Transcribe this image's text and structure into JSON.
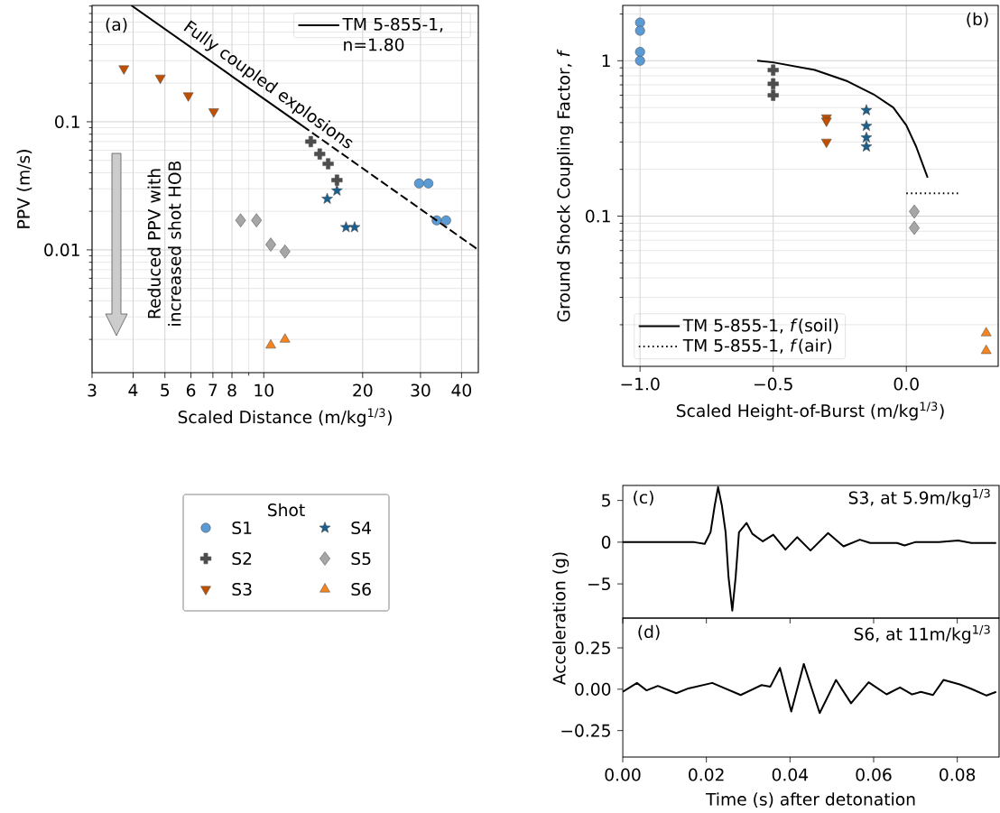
{
  "chart_data": [
    {
      "type": "scatter",
      "xlabel": "Scaled Distance (m/kg$^{1/3}$)",
      "ylabel": "PPV (m/s)",
      "legend_title": "Shot",
      "log": "xy",
      "grid": true,
      "legend": "bottom",
      "xlim": [
        3,
        45
      ],
      "ylim": [
        0.0011,
        0.81
      ],
      "xticks": [
        3,
        4,
        5,
        6,
        7,
        8,
        10,
        20,
        30,
        40
      ],
      "yticks": [
        0.01,
        0.1
      ],
      "annotations": [
        "(a)",
        "Fully coupled explosions",
        "Reduced PPV with increased shot HOB"
      ],
      "series": [
        {
          "name": "S1",
          "color": "#5b9bd5",
          "marker": "circle",
          "x": [
            29.7,
            31.7,
            33.6,
            35.9
          ],
          "values": [
            0.033,
            0.033,
            0.017,
            0.017
          ]
        },
        {
          "name": "S2",
          "color": "#4d4d4d",
          "marker": "cross",
          "x": [
            13.9,
            14.8,
            15.7,
            16.7
          ],
          "values": [
            0.07,
            0.056,
            0.047,
            0.035
          ]
        },
        {
          "name": "S3",
          "color": "#c04f00",
          "marker": "triangle_down",
          "x": [
            3.75,
            4.84,
            5.89,
            7.04
          ],
          "values": [
            0.26,
            0.22,
            0.16,
            0.12
          ]
        },
        {
          "name": "S4",
          "color": "#1a5f8e",
          "marker": "star",
          "x": [
            15.6,
            16.7,
            17.8,
            18.9
          ],
          "values": [
            0.025,
            0.029,
            0.015,
            0.015
          ]
        },
        {
          "name": "S5",
          "color": "#a6a6a6",
          "marker": "diamond",
          "x": [
            8.5,
            9.5,
            10.5,
            11.6
          ],
          "values": [
            0.017,
            0.017,
            0.011,
            0.0097
          ]
        },
        {
          "name": "S6",
          "color": "#f5841f",
          "marker": "triangle",
          "x": [
            10.5,
            11.6
          ],
          "values": [
            0.0018,
            0.002
          ]
        },
        {
          "type": "line",
          "name": "TM 5-855-1, n=1.80",
          "color": "#000000",
          "line_style": "solid",
          "marker": "none",
          "x": [
            3.95,
            13.1
          ],
          "values": [
            0.81,
            0.093
          ]
        },
        {
          "type": "line",
          "color": "#000000",
          "line_style": "dashed",
          "marker": "none",
          "x": [
            13.1,
            45
          ],
          "values": [
            0.093,
            0.01
          ]
        }
      ]
    },
    {
      "type": "scatter",
      "xlabel": "Scaled Height-of-Burst (m/kg$^{1/3}$)",
      "ylabel": "Ground Shock Coupling Factor, *f*",
      "log": "y",
      "grid": true,
      "legend": "bottom left",
      "xlim": [
        -1.065,
        0.345
      ],
      "ylim": [
        0.0108,
        2.27
      ],
      "xticks": [
        {
          "value": -1.0,
          "label": "−1.0"
        },
        {
          "value": -0.5,
          "label": "−0.5"
        },
        {
          "value": 0.0,
          "label": "0.0"
        }
      ],
      "yticks": [
        0.1,
        1
      ],
      "annotations": [
        "(b)"
      ],
      "series": [
        {
          "color": "#5b9bd5",
          "marker": "circle",
          "x": [
            -1.0,
            -1.0,
            -1.0,
            -1.0
          ],
          "values": [
            1.76,
            1.56,
            1.14,
            1.0
          ]
        },
        {
          "color": "#4d4d4d",
          "marker": "cross",
          "x": [
            -0.5,
            -0.5,
            -0.5
          ],
          "values": [
            0.87,
            0.71,
            0.6
          ]
        },
        {
          "color": "#c04f00",
          "marker": "triangle_down",
          "x": [
            -0.3,
            -0.3,
            -0.3
          ],
          "values": [
            0.43,
            0.41,
            0.3
          ]
        },
        {
          "color": "#1a5f8e",
          "marker": "star",
          "x": [
            -0.15,
            -0.15,
            -0.15,
            -0.15
          ],
          "values": [
            0.48,
            0.38,
            0.32,
            0.28
          ]
        },
        {
          "color": "#a6a6a6",
          "marker": "diamond",
          "x": [
            0.03,
            0.03
          ],
          "values": [
            0.107,
            0.084
          ]
        },
        {
          "color": "#f5841f",
          "marker": "triangle",
          "x": [
            0.3,
            0.3
          ],
          "values": [
            0.0177,
            0.0136
          ]
        },
        {
          "type": "line",
          "name": "TM 5-855-1, *f*(soil)",
          "color": "#000000",
          "line_style": "solid",
          "marker": "none",
          "x": [
            -0.56,
            -0.5,
            -0.344,
            -0.221,
            -0.123,
            -0.049,
            0.0,
            0.037,
            0.08
          ],
          "values": [
            1.0,
            0.976,
            0.873,
            0.738,
            0.608,
            0.5,
            0.384,
            0.28,
            0.177
          ]
        },
        {
          "type": "line",
          "name": "TM 5-855-1, *f*(air)",
          "color": "#000000",
          "line_style": "dotted",
          "marker": "none",
          "x": [
            0.0,
            0.2
          ],
          "values": [
            0.14,
            0.14
          ]
        }
      ]
    },
    {
      "type": "line",
      "ylabel": "Acceleration (g)",
      "xlim": [
        0,
        0.09
      ],
      "ylim": [
        -9.1,
        6.8
      ],
      "tick_labels": "y",
      "xticks": [
        0,
        0.02,
        0.04,
        0.06,
        0.08
      ],
      "yticks": [
        {
          "value": -5,
          "label": "−5"
        },
        0,
        5
      ],
      "annotations": [
        "(c)",
        "S3, at 5.9m/kg$^{1/3}$"
      ],
      "series": [
        {
          "color": "#000000",
          "x": [
            0,
            0.0171,
            0.0196,
            0.021,
            0.022,
            0.0228,
            0.0237,
            0.0246,
            0.0253,
            0.0262,
            0.027,
            0.0278,
            0.0296,
            0.031,
            0.0335,
            0.036,
            0.0389,
            0.0417,
            0.0449,
            0.0491,
            0.0528,
            0.0567,
            0.0592,
            0.0656,
            0.0674,
            0.0699,
            0.0756,
            0.0802,
            0.0834,
            0.0893
          ],
          "values": [
            0,
            0,
            -0.2,
            1.2,
            4.4,
            6.6,
            4.4,
            1.2,
            -4.2,
            -8.2,
            -4.2,
            1.2,
            2.3,
            1.0,
            0.1,
            0.9,
            -0.9,
            0.6,
            -1.0,
            1.1,
            -0.5,
            0.3,
            -0.1,
            -0.1,
            -0.4,
            0,
            0,
            0.2,
            -0.1,
            -0.1
          ]
        }
      ]
    },
    {
      "type": "line",
      "xlabel": "Time (s) after detonation",
      "xlim": [
        0,
        0.09
      ],
      "ylim": [
        -0.41,
        0.43
      ],
      "xticks": [
        {
          "value": 0,
          "label": "0.00"
        },
        0.02,
        0.04,
        0.06,
        0.08
      ],
      "yticks": [
        {
          "value": -0.25,
          "label": "−0.25"
        },
        {
          "value": 0,
          "label": "0.00"
        },
        0.25
      ],
      "annotations": [
        "(d)",
        "S6, at 11m/kg$^{1/3}$"
      ],
      "series": [
        {
          "color": "#000000",
          "x": [
            0,
            0.0034,
            0.0057,
            0.0084,
            0.0128,
            0.0157,
            0.0214,
            0.0282,
            0.0332,
            0.0353,
            0.0376,
            0.0403,
            0.0433,
            0.0471,
            0.051,
            0.0546,
            0.0588,
            0.0631,
            0.0663,
            0.0692,
            0.0713,
            0.0742,
            0.0767,
            0.0806,
            0.0834,
            0.087,
            0.0893
          ],
          "values": [
            -0.016,
            0.038,
            -0.007,
            0.02,
            -0.024,
            0.005,
            0.038,
            -0.035,
            0.025,
            0.016,
            0.129,
            -0.135,
            0.153,
            -0.144,
            0.056,
            -0.085,
            0.042,
            -0.031,
            0.011,
            -0.031,
            -0.016,
            -0.035,
            0.056,
            0.029,
            0.002,
            -0.038,
            -0.016
          ]
        }
      ]
    }
  ]
}
